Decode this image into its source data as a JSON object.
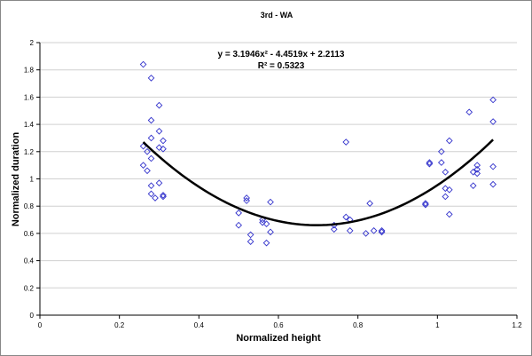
{
  "chart_data": {
    "type": "scatter",
    "title": "3rd - WA",
    "xlabel": "Normalized height",
    "ylabel": "Normalized duration",
    "xlim": [
      0,
      1.2
    ],
    "ylim": [
      0,
      2
    ],
    "x_ticks": [
      "0",
      "0.2",
      "0.4",
      "0.6",
      "0.8",
      "1",
      "1.2"
    ],
    "y_ticks": [
      "0",
      "0.2",
      "0.4",
      "0.6",
      "0.8",
      "1",
      "1.2",
      "1.4",
      "1.6",
      "1.8",
      "2"
    ],
    "grid": "horizontal",
    "marker_color": "#3333cc",
    "trend_color": "#000000",
    "trendline": {
      "type": "polynomial",
      "coefficients": [
        3.1946,
        -4.4519,
        2.2113
      ],
      "x_range": [
        0.26,
        1.14
      ],
      "equation": "y = 3.1946x² - 4.4519x + 2.2113",
      "r_squared": "R² = 0.5323"
    },
    "points": [
      [
        0.26,
        1.84
      ],
      [
        0.28,
        1.74
      ],
      [
        0.26,
        1.24
      ],
      [
        0.27,
        1.2
      ],
      [
        0.26,
        1.1
      ],
      [
        0.28,
        1.3
      ],
      [
        0.28,
        1.43
      ],
      [
        0.3,
        1.54
      ],
      [
        0.3,
        1.35
      ],
      [
        0.3,
        1.23
      ],
      [
        0.31,
        1.28
      ],
      [
        0.31,
        1.22
      ],
      [
        0.28,
        1.15
      ],
      [
        0.27,
        1.06
      ],
      [
        0.28,
        0.95
      ],
      [
        0.28,
        0.89
      ],
      [
        0.29,
        0.86
      ],
      [
        0.3,
        0.97
      ],
      [
        0.31,
        0.88
      ],
      [
        0.31,
        0.87
      ],
      [
        0.5,
        0.75
      ],
      [
        0.5,
        0.66
      ],
      [
        0.52,
        0.86
      ],
      [
        0.52,
        0.84
      ],
      [
        0.53,
        0.59
      ],
      [
        0.53,
        0.54
      ],
      [
        0.56,
        0.68
      ],
      [
        0.56,
        0.7
      ],
      [
        0.57,
        0.67
      ],
      [
        0.57,
        0.53
      ],
      [
        0.58,
        0.83
      ],
      [
        0.58,
        0.61
      ],
      [
        0.74,
        0.66
      ],
      [
        0.74,
        0.63
      ],
      [
        0.77,
        0.72
      ],
      [
        0.77,
        1.27
      ],
      [
        0.78,
        0.7
      ],
      [
        0.78,
        0.62
      ],
      [
        0.82,
        0.6
      ],
      [
        0.83,
        0.82
      ],
      [
        0.84,
        0.62
      ],
      [
        0.86,
        0.62
      ],
      [
        0.86,
        0.61
      ],
      [
        0.97,
        0.81
      ],
      [
        0.97,
        0.82
      ],
      [
        0.98,
        1.11
      ],
      [
        0.98,
        1.12
      ],
      [
        1.01,
        1.2
      ],
      [
        1.01,
        1.12
      ],
      [
        1.02,
        0.87
      ],
      [
        1.02,
        1.05
      ],
      [
        1.02,
        0.93
      ],
      [
        1.03,
        0.92
      ],
      [
        1.03,
        1.28
      ],
      [
        1.03,
        0.74
      ],
      [
        1.08,
        1.49
      ],
      [
        1.09,
        0.95
      ],
      [
        1.09,
        1.05
      ],
      [
        1.1,
        1.1
      ],
      [
        1.1,
        1.04
      ],
      [
        1.1,
        1.07
      ],
      [
        1.14,
        1.58
      ],
      [
        1.14,
        1.42
      ],
      [
        1.14,
        1.09
      ],
      [
        1.14,
        0.96
      ]
    ]
  }
}
